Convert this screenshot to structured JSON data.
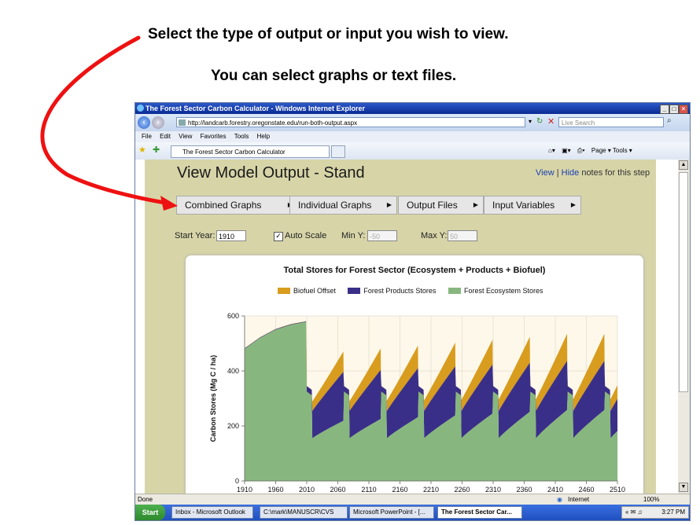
{
  "annotations": {
    "line1": "Select the type of output or input you wish to view.",
    "line2": "You can select graphs  or text files."
  },
  "browser": {
    "window_title": "The Forest Sector Carbon Calculator - Windows Internet Explorer",
    "address": "http://landcarb.forestry.oregonstate.edu/run-both-output.aspx",
    "search_placeholder": "Live Search",
    "menu": [
      "File",
      "Edit",
      "View",
      "Favorites",
      "Tools",
      "Help"
    ],
    "tab_title": "The Forest Sector Carbon Calculator",
    "command_bar": "Page ▾   Tools ▾",
    "status_left": "Done",
    "status_zone": "Internet",
    "zoom": "100%"
  },
  "page": {
    "title": "View Model Output - Stand",
    "notes_view": "View",
    "notes_sep": " | ",
    "notes_hide": "Hide",
    "notes_suffix": " notes for this step",
    "menu_buttons": [
      "Combined Graphs",
      "Individual Graphs",
      "Output Files",
      "Input Variables"
    ],
    "start_year_label": "Start Year:",
    "start_year_value": "1910",
    "auto_scale_label": "Auto Scale",
    "auto_scale_checked": true,
    "min_y_label": "Min Y:",
    "min_y_value": "-50",
    "max_y_label": "Max Y:",
    "max_y_value": "50"
  },
  "taskbar": {
    "start": "Start",
    "items": [
      "Inbox - Microsoft Outlook",
      "C:\\mark\\MANUSCR\\CVS",
      "Microsoft PowerPoint - [...",
      "The Forest Sector Car..."
    ],
    "clock": "3:27 PM"
  },
  "colors": {
    "biofuel": "#d89c1e",
    "products": "#3a2f88",
    "ecosystem": "#87b77e",
    "plot_bg": "#fdf8ea",
    "arrow": "#ee1111"
  },
  "chart_data": {
    "type": "area",
    "title": "Total Stores for Forest Sector (Ecosystem + Products + Biofuel)",
    "xlabel": "",
    "ylabel": "Carbon Stores (Mg C / ha)",
    "xlim": [
      1910,
      2510
    ],
    "ylim": [
      0,
      600
    ],
    "xticks": [
      1910,
      1960,
      2010,
      2060,
      2110,
      2160,
      2210,
      2260,
      2310,
      2360,
      2410,
      2460,
      2510
    ],
    "yticks": [
      0,
      200,
      400,
      600
    ],
    "grid": true,
    "legend_position": "top",
    "stacked": true,
    "series": [
      {
        "name": "Biofuel Offset",
        "color": "#d89c1e"
      },
      {
        "name": "Forest Products Stores",
        "color": "#3a2f88"
      },
      {
        "name": "Forest Ecosystem Stores",
        "color": "#87b77e"
      }
    ],
    "initial_growth": {
      "x": [
        1910,
        1935,
        1960,
        1985,
        2009
      ],
      "ecosystem": [
        480,
        520,
        550,
        568,
        578
      ]
    },
    "harvest_cycles": {
      "rotation_years": 60,
      "first_harvest": 2010,
      "harvest_years": [
        2010,
        2070,
        2130,
        2190,
        2250,
        2310,
        2370,
        2430,
        2490
      ],
      "ecosystem_min_after_harvest": 155,
      "ecosystem_peak_before_harvest": 220,
      "products_min_after_harvest": 240,
      "products_peak_before_harvest": 400,
      "total_min_after_harvest": 260,
      "total_peak_before_harvest": 475,
      "late_total_peak": 540
    }
  }
}
